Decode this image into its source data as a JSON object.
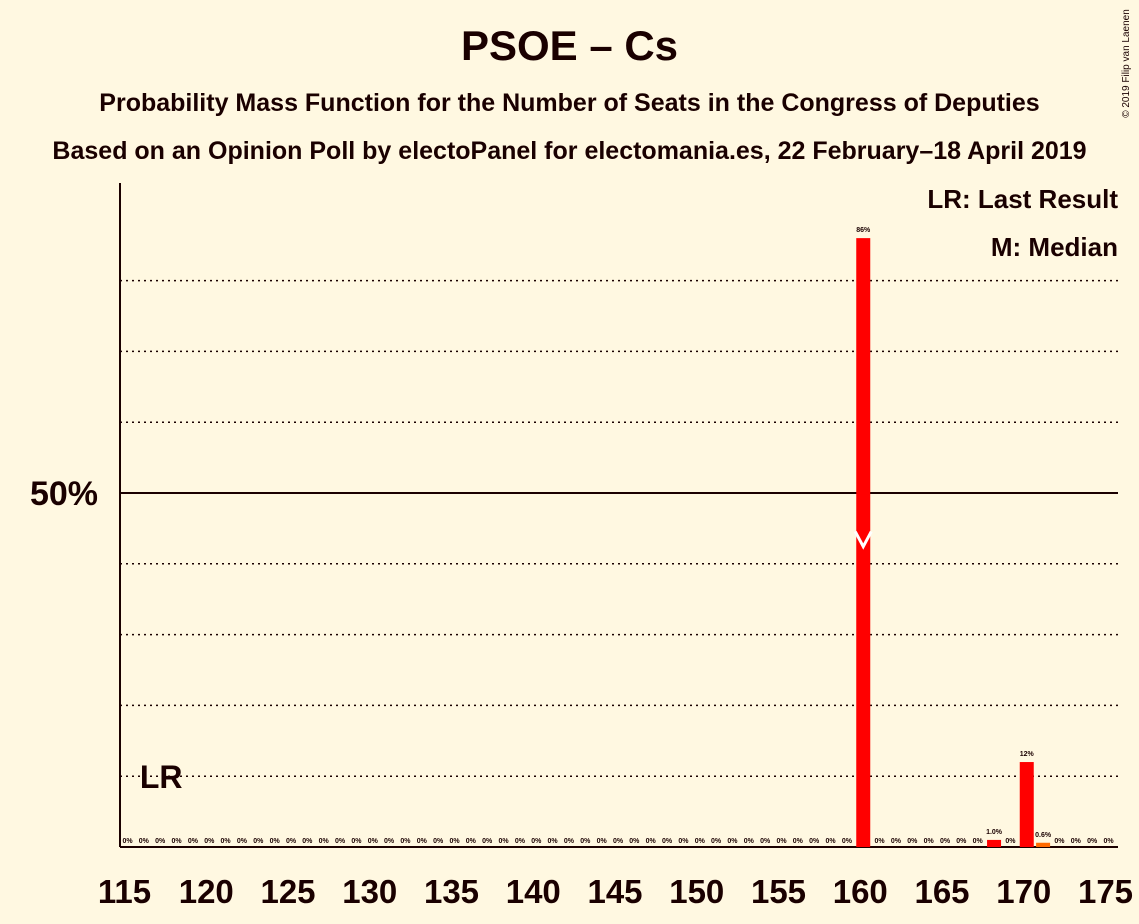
{
  "header": {
    "title": "PSOE – Cs",
    "subtitle1": "Probability Mass Function for the Number of Seats in the Congress of Deputies",
    "subtitle2": "Based on an Opinion Poll by electoPanel for electomania.es, 22 February–18 April 2019",
    "copyright": "© 2019 Filip van Laenen"
  },
  "legend": {
    "lr": "LR: Last Result",
    "median": "M: Median"
  },
  "colors": {
    "background": "#fff8e1",
    "bar": "#ff0000",
    "bar_small": "#ff6a00",
    "text": "#1a0000"
  },
  "chart_data": {
    "type": "bar",
    "title": "PSOE – Cs",
    "xlabel": "",
    "ylabel": "",
    "x_ticks": [
      115,
      120,
      125,
      130,
      135,
      140,
      145,
      150,
      155,
      160,
      165,
      170,
      175
    ],
    "y_tick_labels": [
      {
        "value": 50,
        "label": "50%"
      }
    ],
    "ylim": [
      0,
      100
    ],
    "grid_dotted": [
      10,
      20,
      30,
      40,
      60,
      70,
      80
    ],
    "last_result_seats": 117,
    "last_result_label": "LR",
    "median_seats": 160,
    "bars": [
      {
        "seats": 115,
        "value": 0,
        "label": "0%"
      },
      {
        "seats": 116,
        "value": 0,
        "label": "0%"
      },
      {
        "seats": 117,
        "value": 0,
        "label": "0%"
      },
      {
        "seats": 118,
        "value": 0,
        "label": "0%"
      },
      {
        "seats": 119,
        "value": 0,
        "label": "0%"
      },
      {
        "seats": 120,
        "value": 0,
        "label": "0%"
      },
      {
        "seats": 121,
        "value": 0,
        "label": "0%"
      },
      {
        "seats": 122,
        "value": 0,
        "label": "0%"
      },
      {
        "seats": 123,
        "value": 0,
        "label": "0%"
      },
      {
        "seats": 124,
        "value": 0,
        "label": "0%"
      },
      {
        "seats": 125,
        "value": 0,
        "label": "0%"
      },
      {
        "seats": 126,
        "value": 0,
        "label": "0%"
      },
      {
        "seats": 127,
        "value": 0,
        "label": "0%"
      },
      {
        "seats": 128,
        "value": 0,
        "label": "0%"
      },
      {
        "seats": 129,
        "value": 0,
        "label": "0%"
      },
      {
        "seats": 130,
        "value": 0,
        "label": "0%"
      },
      {
        "seats": 131,
        "value": 0,
        "label": "0%"
      },
      {
        "seats": 132,
        "value": 0,
        "label": "0%"
      },
      {
        "seats": 133,
        "value": 0,
        "label": "0%"
      },
      {
        "seats": 134,
        "value": 0,
        "label": "0%"
      },
      {
        "seats": 135,
        "value": 0,
        "label": "0%"
      },
      {
        "seats": 136,
        "value": 0,
        "label": "0%"
      },
      {
        "seats": 137,
        "value": 0,
        "label": "0%"
      },
      {
        "seats": 138,
        "value": 0,
        "label": "0%"
      },
      {
        "seats": 139,
        "value": 0,
        "label": "0%"
      },
      {
        "seats": 140,
        "value": 0,
        "label": "0%"
      },
      {
        "seats": 141,
        "value": 0,
        "label": "0%"
      },
      {
        "seats": 142,
        "value": 0,
        "label": "0%"
      },
      {
        "seats": 143,
        "value": 0,
        "label": "0%"
      },
      {
        "seats": 144,
        "value": 0,
        "label": "0%"
      },
      {
        "seats": 145,
        "value": 0,
        "label": "0%"
      },
      {
        "seats": 146,
        "value": 0,
        "label": "0%"
      },
      {
        "seats": 147,
        "value": 0,
        "label": "0%"
      },
      {
        "seats": 148,
        "value": 0,
        "label": "0%"
      },
      {
        "seats": 149,
        "value": 0,
        "label": "0%"
      },
      {
        "seats": 150,
        "value": 0,
        "label": "0%"
      },
      {
        "seats": 151,
        "value": 0,
        "label": "0%"
      },
      {
        "seats": 152,
        "value": 0,
        "label": "0%"
      },
      {
        "seats": 153,
        "value": 0,
        "label": "0%"
      },
      {
        "seats": 154,
        "value": 0,
        "label": "0%"
      },
      {
        "seats": 155,
        "value": 0,
        "label": "0%"
      },
      {
        "seats": 156,
        "value": 0,
        "label": "0%"
      },
      {
        "seats": 157,
        "value": 0,
        "label": "0%"
      },
      {
        "seats": 158,
        "value": 0,
        "label": "0%"
      },
      {
        "seats": 159,
        "value": 0,
        "label": "0%"
      },
      {
        "seats": 160,
        "value": 86,
        "label": "86%"
      },
      {
        "seats": 161,
        "value": 0,
        "label": "0%"
      },
      {
        "seats": 162,
        "value": 0,
        "label": "0%"
      },
      {
        "seats": 163,
        "value": 0,
        "label": "0%"
      },
      {
        "seats": 164,
        "value": 0,
        "label": "0%"
      },
      {
        "seats": 165,
        "value": 0,
        "label": "0%"
      },
      {
        "seats": 166,
        "value": 0,
        "label": "0%"
      },
      {
        "seats": 167,
        "value": 0,
        "label": "0%"
      },
      {
        "seats": 168,
        "value": 1.0,
        "label": "1.0%"
      },
      {
        "seats": 169,
        "value": 0,
        "label": "0%"
      },
      {
        "seats": 170,
        "value": 12,
        "label": "12%"
      },
      {
        "seats": 171,
        "value": 0.6,
        "label": "0.6%"
      },
      {
        "seats": 172,
        "value": 0,
        "label": "0%"
      },
      {
        "seats": 173,
        "value": 0,
        "label": "0%"
      },
      {
        "seats": 174,
        "value": 0,
        "label": "0%"
      },
      {
        "seats": 175,
        "value": 0,
        "label": "0%"
      }
    ]
  }
}
